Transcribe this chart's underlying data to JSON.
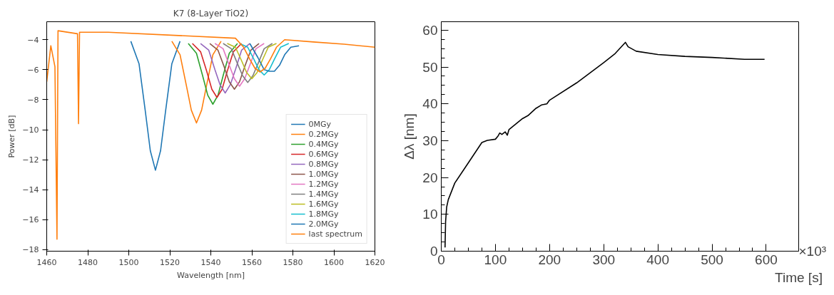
{
  "chart_data": [
    {
      "type": "line",
      "title": "K7 (8-Layer TiO2)",
      "xlabel": "Wavelength [nm]",
      "ylabel": "Power [dB]",
      "xlim": [
        1460,
        1620
      ],
      "ylim": [
        -18.1,
        -2.8
      ],
      "xticks": [
        1460,
        1480,
        1500,
        1520,
        1540,
        1560,
        1580,
        1600,
        1620
      ],
      "yticks": [
        {
          "value": -18,
          "label": "−18"
        },
        {
          "value": -16,
          "label": "−16"
        },
        {
          "value": -14,
          "label": "−14"
        },
        {
          "value": -12,
          "label": "−12"
        },
        {
          "value": -10,
          "label": "−10"
        },
        {
          "value": -8,
          "label": "−8"
        },
        {
          "value": -6,
          "label": "−6"
        },
        {
          "value": -4,
          "label": "−4"
        }
      ],
      "grid": false,
      "legend": "bottom right",
      "series": [
        {
          "name": "0MGy",
          "color": "#1f77b4",
          "x": [
            1501,
            1505,
            1508,
            1510.5,
            1513,
            1515.5,
            1518,
            1521,
            1525
          ],
          "values": [
            -4.1,
            -5.6,
            -8.7,
            -11.4,
            -12.7,
            -11.4,
            -8.7,
            -5.6,
            -4.1
          ]
        },
        {
          "name": "0.2MGy",
          "color": "#ff7f0e",
          "x": [
            1521,
            1525,
            1528,
            1530.5,
            1533,
            1535.5,
            1538,
            1541,
            1545
          ],
          "values": [
            -4.1,
            -5.0,
            -7.0,
            -8.7,
            -9.55,
            -8.7,
            -7.0,
            -5.0,
            -4.1
          ]
        },
        {
          "name": "0.4MGy",
          "color": "#2ca02c",
          "x": [
            1529,
            1533,
            1536,
            1538.5,
            1541,
            1543.5,
            1546,
            1549,
            1553
          ],
          "values": [
            -4.25,
            -4.9,
            -6.4,
            -7.7,
            -8.3,
            -7.7,
            -6.4,
            -4.9,
            -4.25
          ]
        },
        {
          "name": "0.6MGy",
          "color": "#d62728",
          "x": [
            1531,
            1535,
            1538,
            1540.5,
            1543,
            1545.5,
            1548,
            1551,
            1555
          ],
          "values": [
            -4.25,
            -4.8,
            -6.1,
            -7.3,
            -7.85,
            -7.3,
            -6.1,
            -4.8,
            -4.25
          ]
        },
        {
          "name": "0.8MGy",
          "color": "#9467bd",
          "x": [
            1535,
            1539,
            1542,
            1544.5,
            1547,
            1549.5,
            1552,
            1555,
            1559
          ],
          "values": [
            -4.25,
            -4.7,
            -6.0,
            -7.0,
            -7.55,
            -7.0,
            -6.0,
            -4.7,
            -4.25
          ]
        },
        {
          "name": "1.0MGy",
          "color": "#8c564b",
          "x": [
            1539.5,
            1543.5,
            1546.5,
            1549,
            1551.5,
            1554,
            1556.5,
            1559.5,
            1563.5
          ],
          "values": [
            -4.25,
            -4.7,
            -5.8,
            -6.8,
            -7.3,
            -6.8,
            -5.8,
            -4.7,
            -4.25
          ]
        },
        {
          "name": "1.2MGy",
          "color": "#e377c2",
          "x": [
            1542,
            1546,
            1549,
            1551.5,
            1554,
            1556.5,
            1559,
            1562,
            1566
          ],
          "values": [
            -4.25,
            -4.6,
            -5.7,
            -6.6,
            -7.1,
            -6.6,
            -5.7,
            -4.6,
            -4.25
          ]
        },
        {
          "name": "1.4MGy",
          "color": "#7f7f7f",
          "x": [
            1546,
            1550,
            1553,
            1555.5,
            1558,
            1560.5,
            1563,
            1566,
            1570
          ],
          "values": [
            -4.25,
            -4.6,
            -5.6,
            -6.4,
            -6.85,
            -6.4,
            -5.6,
            -4.6,
            -4.25
          ]
        },
        {
          "name": "1.6MGy",
          "color": "#bcbd22",
          "x": [
            1548,
            1552,
            1555,
            1557.5,
            1560,
            1562.5,
            1565,
            1568,
            1572
          ],
          "values": [
            -4.25,
            -4.5,
            -5.4,
            -6.2,
            -6.6,
            -6.2,
            -5.4,
            -4.5,
            -4.25
          ]
        },
        {
          "name": "1.8MGy",
          "color": "#17becf",
          "x": [
            1554,
            1558,
            1561,
            1563.5,
            1566,
            1568.5,
            1571,
            1574,
            1578
          ],
          "values": [
            -4.25,
            -4.5,
            -5.3,
            -6.0,
            -6.35,
            -6.0,
            -5.3,
            -4.5,
            -4.25
          ]
        },
        {
          "name": "2.0MGy",
          "color": "#1f77b4",
          "x": [
            1559,
            1563,
            1566,
            1568.5,
            1571,
            1573.5,
            1576,
            1579,
            1583
          ],
          "values": [
            -4.25,
            -5.2,
            -6.0,
            -6.1,
            -6.1,
            -5.7,
            -5.0,
            -4.5,
            -4.4
          ]
        },
        {
          "name": "last spectrum",
          "color": "#ff7f0e",
          "x": [
            1460,
            1462,
            1464,
            1465,
            1465.5,
            1475,
            1475.5,
            1476,
            1490,
            1552,
            1556,
            1559,
            1561.5,
            1564,
            1566.5,
            1569,
            1572,
            1576,
            1590,
            1605,
            1620
          ],
          "values": [
            -6.8,
            -4.4,
            -5.8,
            -17.3,
            -3.4,
            -3.6,
            -9.6,
            -3.5,
            -3.5,
            -3.9,
            -4.5,
            -5.3,
            -5.9,
            -6.15,
            -5.9,
            -5.3,
            -4.5,
            -4.0,
            -4.15,
            -4.3,
            -4.5
          ]
        }
      ]
    },
    {
      "type": "line",
      "xlabel": "Time [s]",
      "ylabel": "Δλ [nm]",
      "annotations": [
        "×10³"
      ],
      "xlim": [
        0,
        660
      ],
      "ylim": [
        0,
        62.3
      ],
      "xticks": [
        0,
        100,
        200,
        300,
        400,
        500,
        600
      ],
      "yticks": [
        0,
        10,
        20,
        30,
        40,
        50,
        60
      ],
      "grid": false,
      "legend": false,
      "series": [
        {
          "color": "#000000",
          "x": [
            7,
            8,
            10,
            13,
            25,
            50,
            75,
            85,
            100,
            105,
            108,
            112,
            118,
            122,
            125,
            150,
            160,
            175,
            185,
            195,
            200,
            250,
            300,
            320,
            340,
            345,
            360,
            400,
            450,
            500,
            560,
            597
          ],
          "values": [
            1,
            8,
            12,
            14,
            18.5,
            24,
            29.5,
            30.1,
            30.4,
            31.3,
            32.1,
            31.7,
            32.4,
            31.5,
            33,
            36,
            36.8,
            38.8,
            39.7,
            40,
            41,
            45.7,
            51.2,
            53.5,
            56.7,
            55.5,
            54.3,
            53.4,
            52.9,
            52.6,
            52.1,
            52.1
          ]
        }
      ]
    }
  ]
}
